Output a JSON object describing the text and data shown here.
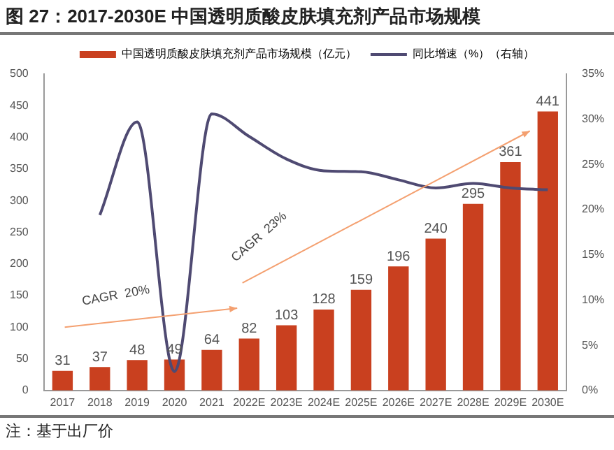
{
  "chart_data": {
    "type": "bar",
    "title": "图 27：2017-2030E 中国透明质酸皮肤填充剂产品市场规模",
    "categories": [
      "2017",
      "2018",
      "2019",
      "2020",
      "2021",
      "2022E",
      "2023E",
      "2024E",
      "2025E",
      "2026E",
      "2027E",
      "2028E",
      "2029E",
      "2030E"
    ],
    "series": [
      {
        "name": "中国透明质酸皮肤填充剂产品市场规模（亿元）",
        "color": "#c9401f",
        "values": [
          31,
          37,
          48,
          49,
          64,
          82,
          103,
          128,
          159,
          196,
          240,
          295,
          361,
          441
        ],
        "value_labels": [
          "31",
          "37",
          "48",
          "49",
          "64",
          "82",
          "103",
          "128",
          "159",
          "196",
          "240",
          "295",
          "361",
          "441"
        ]
      },
      {
        "name": "同比增速（%）（右轴）",
        "type": "line",
        "axis": "y2",
        "color": "#4f4a72",
        "values": [
          null,
          19.4,
          29.7,
          2.1,
          30.6,
          28.1,
          25.6,
          24.3,
          24.2,
          23.3,
          22.4,
          22.9,
          22.4,
          22.2
        ]
      }
    ],
    "ylim": [
      0,
      500
    ],
    "yticks": [
      0,
      50,
      100,
      150,
      200,
      250,
      300,
      350,
      400,
      450,
      500
    ],
    "y2lim": [
      0,
      35
    ],
    "y2ticks": [
      {
        "value": 0,
        "label": "0%"
      },
      {
        "value": 5,
        "label": "5%"
      },
      {
        "value": 10,
        "label": "10%"
      },
      {
        "value": 15,
        "label": "15%"
      },
      {
        "value": 20,
        "label": "20%"
      },
      {
        "value": 25,
        "label": "25%"
      },
      {
        "value": 30,
        "label": "30%"
      },
      {
        "value": 35,
        "label": "35%"
      }
    ],
    "grid": false,
    "legend": "top",
    "marker": "none",
    "line_style": "solid",
    "annotations": [
      "CAGR  20%",
      "CAGR  23%",
      "注：基于出厂价"
    ]
  }
}
